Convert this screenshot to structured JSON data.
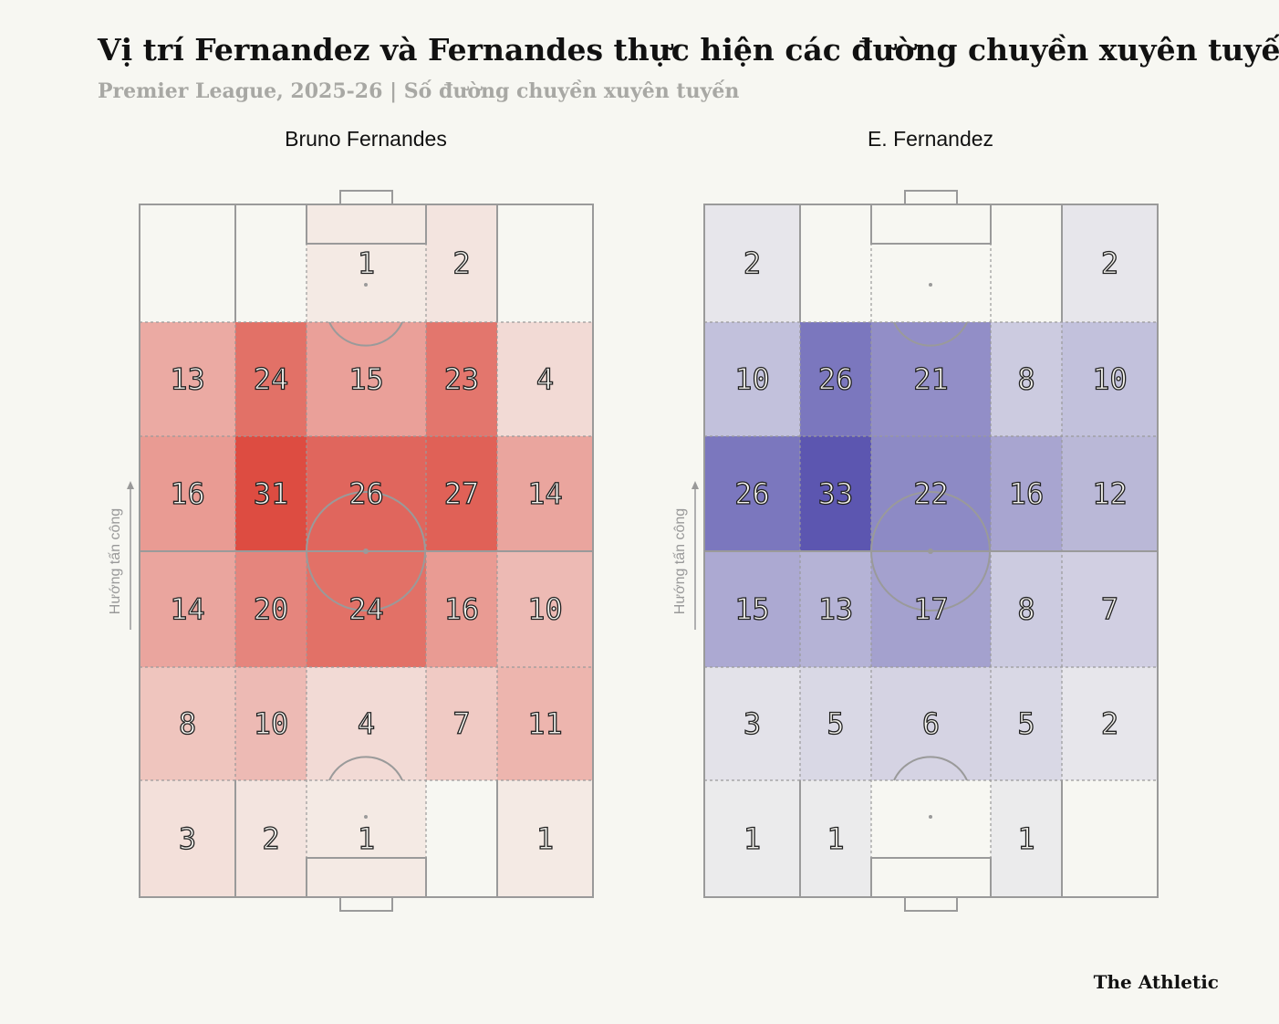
{
  "title": "Vị trí Fernandez và Fernandes thực hiện các đường chuyền xuyên tuyến",
  "subtitle": "Premier League, 2025-26 | Số đường chuyền xuyên tuyến",
  "axis_label": "Hướng tấn công",
  "source": "The Athletic",
  "chart_data": [
    {
      "type": "heatmap",
      "title": "Bruno Fernandes",
      "color": "#d9382e",
      "values": [
        [
          null,
          null,
          1,
          2,
          null
        ],
        [
          13,
          24,
          15,
          23,
          4
        ],
        [
          16,
          31,
          26,
          27,
          14
        ],
        [
          14,
          20,
          24,
          16,
          10
        ],
        [
          8,
          10,
          4,
          7,
          11
        ],
        [
          3,
          2,
          1,
          null,
          1
        ]
      ]
    },
    {
      "type": "heatmap",
      "title": "E. Fernandez",
      "color": "#4a44a8",
      "values": [
        [
          2,
          null,
          null,
          null,
          2
        ],
        [
          10,
          26,
          21,
          8,
          10
        ],
        [
          26,
          33,
          22,
          16,
          12
        ],
        [
          15,
          13,
          17,
          8,
          7
        ],
        [
          3,
          5,
          6,
          5,
          2
        ],
        [
          1,
          1,
          null,
          1,
          null
        ]
      ]
    }
  ]
}
